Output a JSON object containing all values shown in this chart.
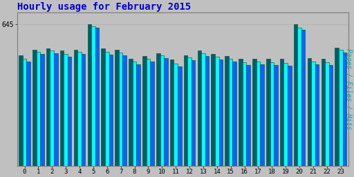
{
  "title": "Hourly usage for February 2015",
  "title_color": "#0000cc",
  "title_fontsize": 10,
  "ylabel_right": "Pages / Files / Hits",
  "ylabel_color": "#00aaaa",
  "background_color": "#c0c0c0",
  "plot_bg_color": "#c0c0c0",
  "hours": [
    0,
    1,
    2,
    3,
    4,
    5,
    6,
    7,
    8,
    9,
    10,
    11,
    12,
    13,
    14,
    15,
    16,
    17,
    18,
    19,
    20,
    21,
    22,
    23
  ],
  "pages": [
    505,
    530,
    535,
    525,
    530,
    645,
    535,
    530,
    490,
    500,
    515,
    485,
    505,
    525,
    510,
    500,
    490,
    490,
    490,
    488,
    645,
    492,
    490,
    540
  ],
  "files": [
    490,
    520,
    525,
    510,
    520,
    638,
    520,
    518,
    475,
    488,
    505,
    468,
    495,
    515,
    498,
    488,
    472,
    475,
    472,
    470,
    632,
    475,
    472,
    530
  ],
  "hits": [
    475,
    510,
    515,
    498,
    510,
    630,
    508,
    505,
    462,
    475,
    492,
    455,
    482,
    502,
    485,
    475,
    460,
    462,
    460,
    458,
    620,
    462,
    460,
    518
  ],
  "pages_color": "#006060",
  "files_color": "#00ffff",
  "hits_color": "#0066ff",
  "bar_edge_color": "#004444",
  "ymax": 700,
  "ytick_label": "645",
  "ytick_value": 645,
  "fig_width": 5.12,
  "fig_height": 2.56,
  "dpi": 100
}
